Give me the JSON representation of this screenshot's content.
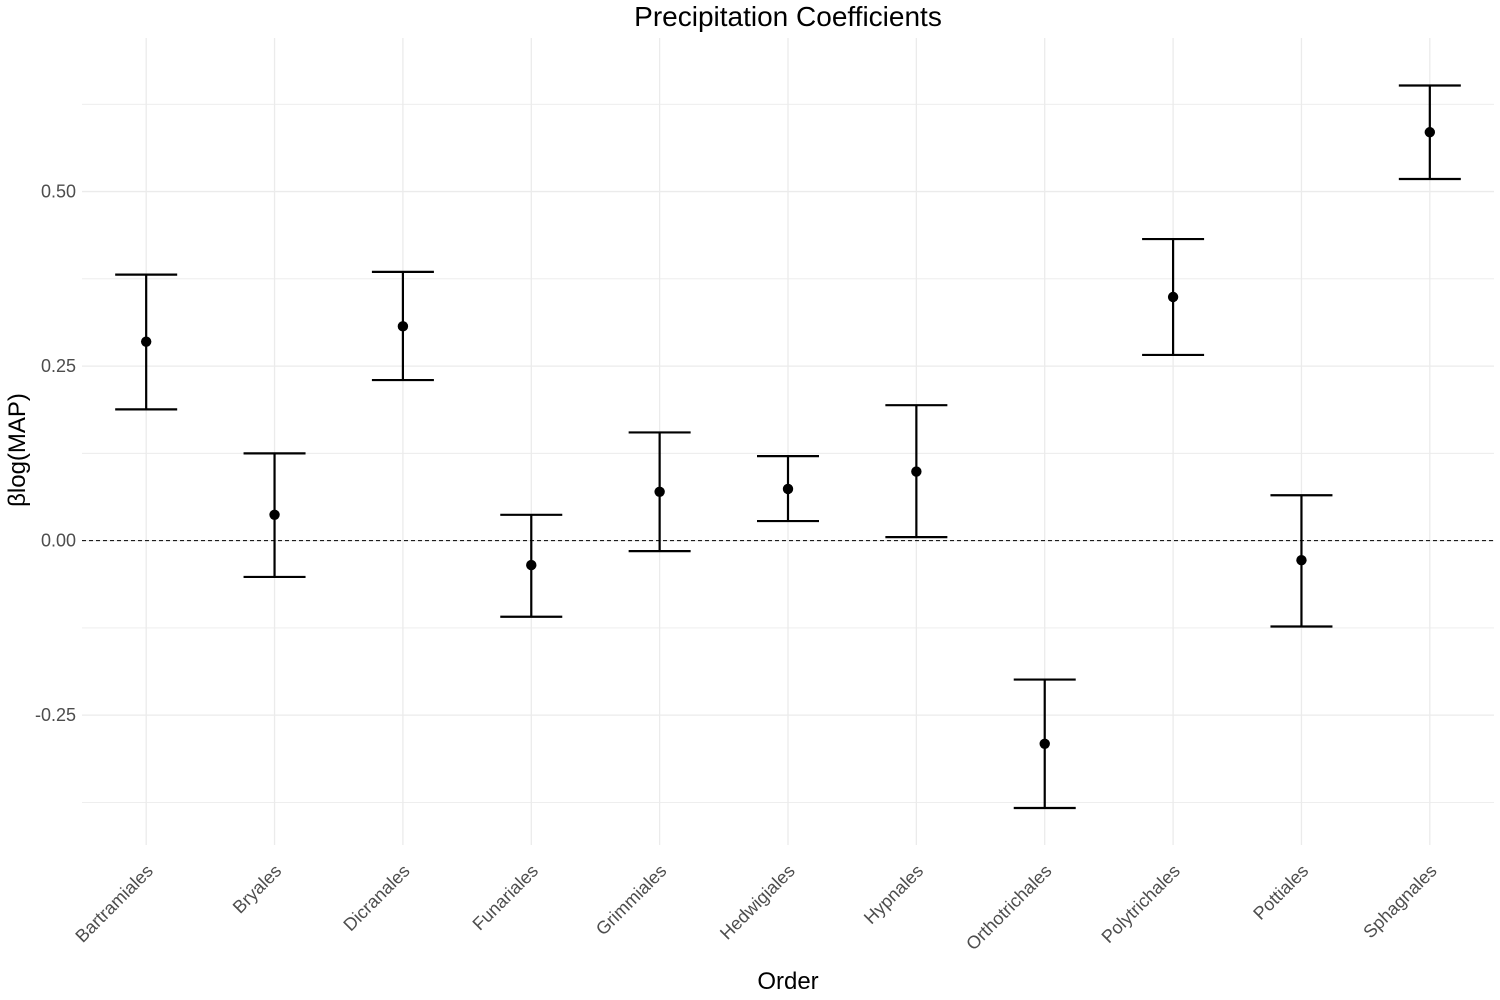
{
  "chart_data": {
    "type": "scatter",
    "subtype": "point-with-error-bars",
    "title": "Precipitation Coefficients",
    "xlabel": "Order",
    "ylabel": "βlog(MAP)",
    "categories": [
      "Bartramiales",
      "Bryales",
      "Dicranales",
      "Funariales",
      "Grimmiales",
      "Hedwigiales",
      "Hypnales",
      "Orthotrichales",
      "Polytrichales",
      "Pottiales",
      "Sphagnales"
    ],
    "series": [
      {
        "estimates": [
          0.285,
          0.037,
          0.307,
          -0.035,
          0.07,
          0.074,
          0.099,
          -0.291,
          0.349,
          -0.028,
          0.585
        ],
        "lower": [
          0.188,
          -0.052,
          0.23,
          -0.109,
          -0.015,
          0.028,
          0.005,
          -0.383,
          0.266,
          -0.123,
          0.518
        ],
        "upper": [
          0.381,
          0.125,
          0.385,
          0.037,
          0.155,
          0.121,
          0.194,
          -0.199,
          0.432,
          0.065,
          0.652
        ]
      }
    ],
    "y_ticks": [
      -0.25,
      0.0,
      0.25,
      0.5
    ],
    "y_tick_labels": [
      "-0.25",
      "0.00",
      "0.25",
      "0.50"
    ],
    "ylim": [
      -0.436,
      0.72
    ],
    "reference_line": 0.0,
    "reference_line_style": "dashed",
    "grid": true,
    "legend": "none",
    "colors": {
      "point": "#000000",
      "errorbar": "#000000",
      "grid": "#ebebeb",
      "reference_line": "#000000",
      "tick_label": "#4d4d4d",
      "background": "#ffffff"
    }
  }
}
